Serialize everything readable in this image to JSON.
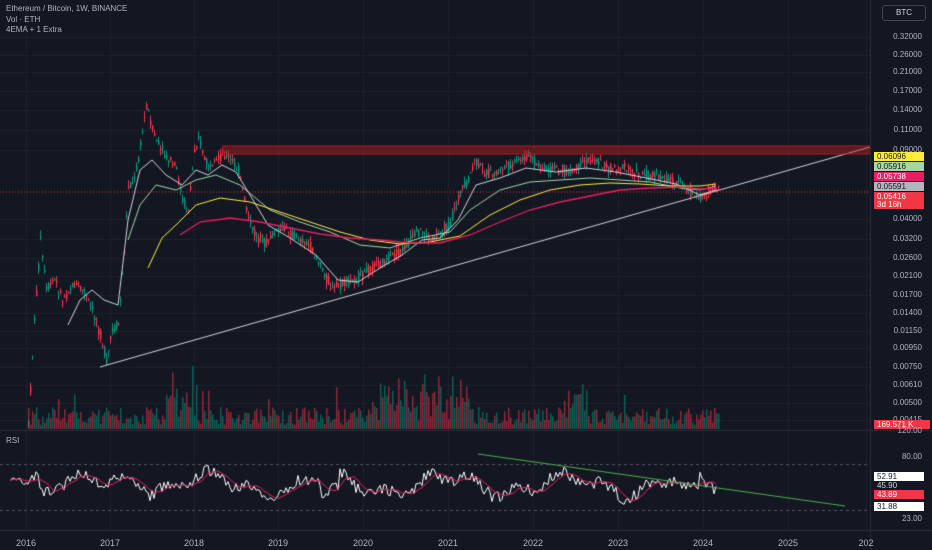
{
  "header": {
    "symbol_line": "Ethereum / Bitcoin, 1W, BINANCE",
    "volume_line": "Vol · ETH",
    "indicator_line": "4EMA + 1 Extra",
    "currency_button": "BTC"
  },
  "price_scale": {
    "labels": [
      "0.32000",
      "0.26000",
      "0.21000",
      "0.17000",
      "0.14000",
      "0.11000",
      "0.09000",
      "0.04000",
      "0.03200",
      "0.02600",
      "0.02100",
      "0.01700",
      "0.01400",
      "0.01150",
      "0.00950",
      "0.00750",
      "0.00610",
      "0.00500",
      "0.00415"
    ],
    "tags": [
      {
        "text": "0.06096",
        "bg": "#ffeb3b",
        "fg": "#131722"
      },
      {
        "text": "0.05916",
        "bg": "#a5d6a7",
        "fg": "#131722"
      },
      {
        "text": "0.05738",
        "bg": "#e91e63",
        "fg": "#ffffff"
      },
      {
        "text": "0.05591",
        "bg": "#b2b5be",
        "fg": "#131722"
      },
      {
        "text": "0.05416",
        "bg": "#f23645",
        "fg": "#ffffff"
      },
      {
        "text": "3d 16h",
        "bg": "#f23645",
        "fg": "#ffffff"
      }
    ],
    "volume_tag": {
      "text": "169.571 K",
      "bg": "#f23645",
      "fg": "#ffffff"
    }
  },
  "rsi": {
    "title": "RSI",
    "scale_labels": [
      "120.00",
      "80.00",
      "23.00"
    ],
    "tags": [
      {
        "text": "52.91",
        "bg": "#ffffff",
        "fg": "#131722"
      },
      {
        "text": "45.90",
        "bg": "#131722",
        "fg": "#d1d4dc"
      },
      {
        "text": "43.89",
        "bg": "#f23645",
        "fg": "#ffffff"
      },
      {
        "text": "31.88",
        "bg": "#ffffff",
        "fg": "#131722"
      }
    ]
  },
  "time_axis": [
    "2016",
    "2017",
    "2018",
    "2019",
    "2020",
    "2021",
    "2022",
    "2023",
    "2024",
    "2025",
    "202"
  ],
  "colors": {
    "background": "#131722",
    "up": "#089981",
    "down": "#f23645",
    "ema_white": "#d1d4dc",
    "ema_green": "#a5d6a7",
    "ema_yellow": "#ffeb3b",
    "ema_red": "#e91e63",
    "trendline": "#d1d4dc",
    "resistance": "#b71c1c",
    "rsi_line": "#ffffff",
    "rsi_ma": "#e91e63",
    "rsi_trend": "#4caf50"
  }
}
